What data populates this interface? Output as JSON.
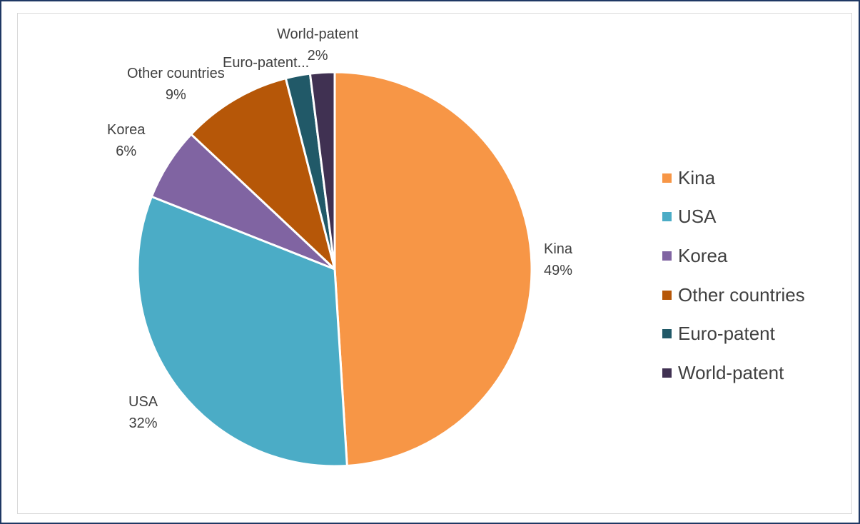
{
  "chart_data": {
    "type": "pie",
    "title": "",
    "categories": [
      "Kina",
      "USA",
      "Korea",
      "Other countries",
      "Euro-patent",
      "World-patent"
    ],
    "values": [
      49,
      32,
      6,
      9,
      2,
      2
    ],
    "percent_labels": [
      "49%",
      "32%",
      "6%",
      "9%",
      "",
      "2%"
    ],
    "display_names": [
      "Kina",
      "USA",
      "Korea",
      "Other countries",
      "Euro-patent...",
      "World-patent"
    ],
    "colors": [
      "#f79646",
      "#4bacc6",
      "#8064a2",
      "#b65708",
      "#215968",
      "#403152"
    ],
    "legend_position": "right",
    "start_angle_deg": 0,
    "direction": "clockwise"
  }
}
